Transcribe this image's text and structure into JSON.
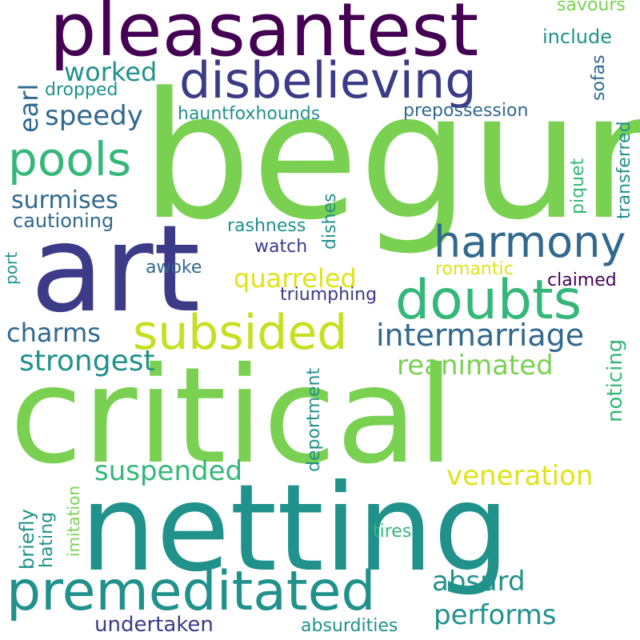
{
  "palette": {
    "purple": "#440154",
    "indigo": "#3b3b87",
    "blue": "#31688e",
    "teal": "#21918c",
    "mint": "#35b779",
    "green": "#7ad151",
    "yellow": "#dfe318"
  },
  "words": [
    {
      "text": "begun",
      "color": "#7ad151",
      "orientation": "horizontal"
    },
    {
      "text": "critical",
      "color": "#7ad151",
      "orientation": "horizontal"
    },
    {
      "text": "netting",
      "color": "#21918c",
      "orientation": "horizontal"
    },
    {
      "text": "art",
      "color": "#3b3b87",
      "orientation": "horizontal"
    },
    {
      "text": "pleasantest",
      "color": "#440154",
      "orientation": "horizontal"
    },
    {
      "text": "disbelieving",
      "color": "#3b3b87",
      "orientation": "horizontal"
    },
    {
      "text": "premeditated",
      "color": "#21918c",
      "orientation": "horizontal"
    },
    {
      "text": "harmony",
      "color": "#31688e",
      "orientation": "horizontal"
    },
    {
      "text": "doubts",
      "color": "#35b779",
      "orientation": "horizontal"
    },
    {
      "text": "subsided",
      "color": "#c5e021",
      "orientation": "horizontal"
    },
    {
      "text": "pools",
      "color": "#35b779",
      "orientation": "horizontal"
    },
    {
      "text": "intermarriage",
      "color": "#31688e",
      "orientation": "horizontal"
    },
    {
      "text": "strongest",
      "color": "#21918c",
      "orientation": "horizontal"
    },
    {
      "text": "suspended",
      "color": "#35b779",
      "orientation": "horizontal"
    },
    {
      "text": "reanimated",
      "color": "#7ad151",
      "orientation": "horizontal"
    },
    {
      "text": "veneration",
      "color": "#dfe318",
      "orientation": "horizontal"
    },
    {
      "text": "performs",
      "color": "#21918c",
      "orientation": "horizontal"
    },
    {
      "text": "absurd",
      "color": "#21918c",
      "orientation": "horizontal"
    },
    {
      "text": "quarreled",
      "color": "#dfe318",
      "orientation": "horizontal"
    },
    {
      "text": "charms",
      "color": "#31688e",
      "orientation": "horizontal"
    },
    {
      "text": "speedy",
      "color": "#31688e",
      "orientation": "horizontal"
    },
    {
      "text": "surmises",
      "color": "#31688e",
      "orientation": "horizontal"
    },
    {
      "text": "worked",
      "color": "#21918c",
      "orientation": "horizontal"
    },
    {
      "text": "undertaken",
      "color": "#3b3b87",
      "orientation": "horizontal"
    },
    {
      "text": "cautioning",
      "color": "#31688e",
      "orientation": "horizontal"
    },
    {
      "text": "include",
      "color": "#21918c",
      "orientation": "horizontal"
    },
    {
      "text": "prepossession",
      "color": "#31688e",
      "orientation": "horizontal"
    },
    {
      "text": "hauntfoxhounds",
      "color": "#21918c",
      "orientation": "horizontal"
    },
    {
      "text": "rashness",
      "color": "#21918c",
      "orientation": "horizontal"
    },
    {
      "text": "triumphing",
      "color": "#3b3b87",
      "orientation": "horizontal"
    },
    {
      "text": "claimed",
      "color": "#440154",
      "orientation": "horizontal"
    },
    {
      "text": "watch",
      "color": "#3b3b87",
      "orientation": "horizontal"
    },
    {
      "text": "awoke",
      "color": "#31688e",
      "orientation": "horizontal"
    },
    {
      "text": "dropped",
      "color": "#21918c",
      "orientation": "horizontal"
    },
    {
      "text": "romantic",
      "color": "#dfe318",
      "orientation": "horizontal"
    },
    {
      "text": "absurdities",
      "color": "#21918c",
      "orientation": "horizontal"
    },
    {
      "text": "savours",
      "color": "#7ad151",
      "orientation": "horizontal"
    },
    {
      "text": "tires",
      "color": "#35b779",
      "orientation": "horizontal"
    },
    {
      "text": "earl",
      "color": "#31688e",
      "orientation": "vertical"
    },
    {
      "text": "noticing",
      "color": "#35b779",
      "orientation": "vertical"
    },
    {
      "text": "transferred",
      "color": "#21918c",
      "orientation": "vertical"
    },
    {
      "text": "piquet",
      "color": "#35b779",
      "orientation": "vertical"
    },
    {
      "text": "sofas",
      "color": "#31688e",
      "orientation": "vertical"
    },
    {
      "text": "dishes",
      "color": "#21918c",
      "orientation": "vertical"
    },
    {
      "text": "deportment",
      "color": "#21918c",
      "orientation": "vertical"
    },
    {
      "text": "briefly",
      "color": "#21918c",
      "orientation": "vertical"
    },
    {
      "text": "hating",
      "color": "#21918c",
      "orientation": "vertical"
    },
    {
      "text": "imitation",
      "color": "#7ad151",
      "orientation": "vertical"
    },
    {
      "text": "port",
      "color": "#21918c",
      "orientation": "vertical"
    }
  ]
}
